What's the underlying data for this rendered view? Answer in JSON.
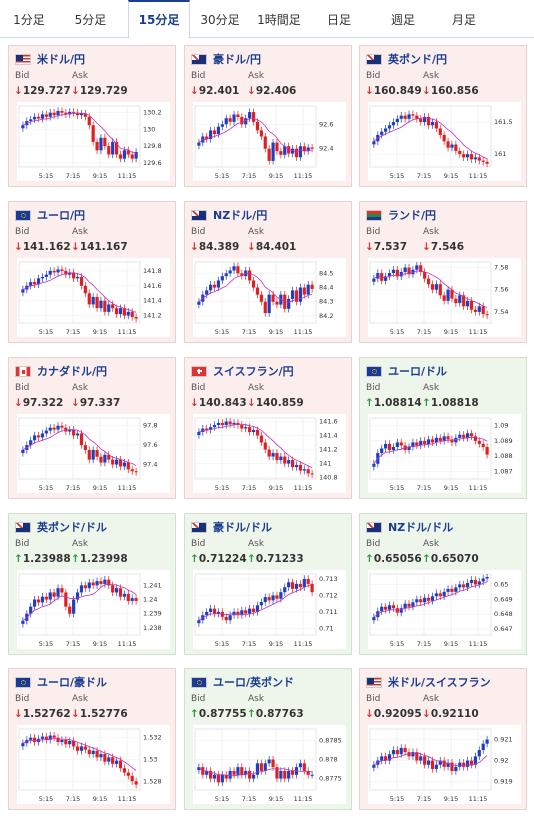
{
  "tabs": [
    {
      "label": "1分足",
      "active": false
    },
    {
      "label": "5分足",
      "active": false
    },
    {
      "label": "15分足",
      "active": true
    },
    {
      "label": "30分足",
      "active": false
    },
    {
      "label": "1時間足",
      "active": false
    },
    {
      "label": "日足",
      "active": false
    },
    {
      "label": "週足",
      "active": false
    },
    {
      "label": "月足",
      "active": false
    }
  ],
  "bid_label": "Bid",
  "ask_label": "Ask",
  "colors": {
    "up_candle": "#1f3fbf",
    "down_candle": "#e02020",
    "moving_average": "#c030c0",
    "down_bg": "#fdeeee",
    "up_bg": "#eef5ea"
  },
  "cards": [
    {
      "pair": "米ドル/円",
      "flag": "us-flag",
      "trend": "down",
      "arrow": "↓",
      "bid": "129.727",
      "ask": "129.729",
      "chart_data": {
        "type": "candlestick",
        "x_ticks": [
          "5:15",
          "7:15",
          "9:15",
          "11:15"
        ],
        "y_ticks": [
          "130.2",
          "130",
          "129.8",
          "129.6"
        ],
        "ylim": [
          129.55,
          130.28
        ],
        "closes": [
          130.05,
          130.1,
          130.12,
          130.15,
          130.13,
          130.18,
          130.15,
          130.2,
          130.17,
          130.22,
          130.2,
          130.18,
          130.21,
          130.2,
          130.17,
          130.19,
          130.15,
          130.05,
          129.85,
          129.75,
          129.9,
          129.8,
          129.7,
          129.85,
          129.7,
          129.65,
          129.75,
          129.7,
          129.65,
          129.73
        ]
      }
    },
    {
      "pair": "豪ドル/円",
      "flag": "au-flag",
      "trend": "down",
      "arrow": "↓",
      "bid": "92.401",
      "ask": "92.406",
      "chart_data": {
        "type": "candlestick",
        "x_ticks": [
          "5:15",
          "7:15",
          "9:15",
          "11:15"
        ],
        "y_ticks": [
          "92.6",
          "92.4"
        ],
        "ylim": [
          92.25,
          92.75
        ],
        "closes": [
          92.45,
          92.5,
          92.48,
          92.55,
          92.52,
          92.58,
          92.6,
          92.65,
          92.62,
          92.68,
          92.66,
          92.6,
          92.65,
          92.7,
          92.62,
          92.55,
          92.5,
          92.4,
          92.3,
          92.45,
          92.38,
          92.35,
          92.42,
          92.36,
          92.4,
          92.33,
          92.42,
          92.38,
          92.41,
          92.4
        ]
      }
    },
    {
      "pair": "英ポンド/円",
      "flag": "gb-flag",
      "trend": "down",
      "arrow": "↓",
      "bid": "160.849",
      "ask": "160.856",
      "chart_data": {
        "type": "candlestick",
        "x_ticks": [
          "5:15",
          "7:15",
          "9:15",
          "11:15"
        ],
        "y_ticks": [
          "161.5",
          "161"
        ],
        "ylim": [
          160.8,
          161.75
        ],
        "closes": [
          161.2,
          161.3,
          161.35,
          161.4,
          161.45,
          161.5,
          161.55,
          161.6,
          161.55,
          161.62,
          161.6,
          161.55,
          161.5,
          161.58,
          161.45,
          161.5,
          161.4,
          161.3,
          161.2,
          161.1,
          161.15,
          161.05,
          161,
          160.95,
          161,
          160.92,
          160.95,
          160.9,
          160.88,
          160.85
        ]
      }
    },
    {
      "pair": "ユーロ/円",
      "flag": "eu-flag",
      "trend": "down",
      "arrow": "↓",
      "bid": "141.162",
      "ask": "141.167",
      "chart_data": {
        "type": "candlestick",
        "x_ticks": [
          "5:15",
          "7:15",
          "9:15",
          "11:15"
        ],
        "y_ticks": [
          "141.8",
          "141.6",
          "141.4",
          "141.2"
        ],
        "ylim": [
          141.1,
          141.92
        ],
        "closes": [
          141.55,
          141.6,
          141.65,
          141.62,
          141.7,
          141.72,
          141.75,
          141.8,
          141.78,
          141.82,
          141.8,
          141.75,
          141.78,
          141.7,
          141.72,
          141.6,
          141.5,
          141.35,
          141.45,
          141.3,
          141.4,
          141.25,
          141.35,
          141.3,
          141.22,
          141.3,
          141.2,
          141.25,
          141.18,
          141.16
        ]
      }
    },
    {
      "pair": "NZドル/円",
      "flag": "nz-flag",
      "trend": "down",
      "arrow": "↓",
      "bid": "84.389",
      "ask": "84.401",
      "chart_data": {
        "type": "candlestick",
        "x_ticks": [
          "5:15",
          "7:15",
          "9:15",
          "11:15"
        ],
        "y_ticks": [
          "84.5",
          "84.4",
          "84.3",
          "84.2"
        ],
        "ylim": [
          84.15,
          84.58
        ],
        "closes": [
          84.3,
          84.35,
          84.38,
          84.42,
          84.4,
          84.45,
          84.48,
          84.5,
          84.52,
          84.55,
          84.5,
          84.48,
          84.52,
          84.45,
          84.4,
          84.35,
          84.3,
          84.22,
          84.35,
          84.3,
          84.28,
          84.35,
          84.25,
          84.32,
          84.38,
          84.3,
          84.4,
          84.35,
          84.42,
          84.39
        ]
      }
    },
    {
      "pair": "ランド/円",
      "flag": "za-flag",
      "trend": "down",
      "arrow": "↓",
      "bid": "7.537",
      "ask": "7.546",
      "chart_data": {
        "type": "candlestick",
        "x_ticks": [
          "5:15",
          "7:15",
          "9:15",
          "11:15"
        ],
        "y_ticks": [
          "7.58",
          "7.56",
          "7.54"
        ],
        "ylim": [
          7.53,
          7.585
        ],
        "closes": [
          7.57,
          7.575,
          7.568,
          7.572,
          7.575,
          7.578,
          7.572,
          7.576,
          7.58,
          7.574,
          7.578,
          7.582,
          7.576,
          7.57,
          7.565,
          7.56,
          7.565,
          7.555,
          7.55,
          7.56,
          7.552,
          7.548,
          7.555,
          7.545,
          7.55,
          7.542,
          7.54,
          7.545,
          7.538,
          7.537
        ]
      }
    },
    {
      "pair": "カナダドル/円",
      "flag": "ca-flag",
      "trend": "down",
      "arrow": "↓",
      "bid": "97.322",
      "ask": "97.337",
      "chart_data": {
        "type": "candlestick",
        "x_ticks": [
          "5:15",
          "7:15",
          "9:15",
          "11:15"
        ],
        "y_ticks": [
          "97.8",
          "97.6",
          "97.4"
        ],
        "ylim": [
          97.25,
          97.88
        ],
        "closes": [
          97.55,
          97.6,
          97.65,
          97.7,
          97.68,
          97.72,
          97.75,
          97.78,
          97.76,
          97.8,
          97.78,
          97.74,
          97.76,
          97.7,
          97.72,
          97.6,
          97.55,
          97.45,
          97.55,
          97.48,
          97.42,
          97.5,
          97.45,
          97.4,
          97.45,
          97.38,
          97.42,
          97.35,
          97.33,
          97.32
        ]
      }
    },
    {
      "pair": "スイスフラン/円",
      "flag": "ch-flag",
      "trend": "down",
      "arrow": "↓",
      "bid": "140.843",
      "ask": "140.859",
      "chart_data": {
        "type": "candlestick",
        "x_ticks": [
          "5:15",
          "7:15",
          "9:15",
          "11:15"
        ],
        "y_ticks": [
          "141.6",
          "141.4",
          "141.2",
          "141",
          "140.8"
        ],
        "ylim": [
          140.78,
          141.65
        ],
        "closes": [
          141.45,
          141.5,
          141.48,
          141.52,
          141.55,
          141.58,
          141.55,
          141.6,
          141.56,
          141.58,
          141.55,
          141.5,
          141.52,
          141.45,
          141.48,
          141.4,
          141.3,
          141.2,
          141.1,
          141.15,
          141.05,
          141.1,
          141,
          141.05,
          140.95,
          140.98,
          140.9,
          140.92,
          140.86,
          140.85
        ]
      }
    },
    {
      "pair": "ユーロ/ドル",
      "flag": "eu-us-flag",
      "trend": "up",
      "arrow": "↑",
      "bid": "1.08814",
      "ask": "1.08818",
      "chart_data": {
        "type": "candlestick",
        "x_ticks": [
          "5:15",
          "7:15",
          "9:15",
          "11:15"
        ],
        "y_ticks": [
          "1.09",
          "1.089",
          "1.088",
          "1.087"
        ],
        "ylim": [
          1.0865,
          1.0905
        ],
        "closes": [
          1.0875,
          1.0882,
          1.0885,
          1.0888,
          1.0884,
          1.0886,
          1.0889,
          1.0887,
          1.0884,
          1.0886,
          1.0889,
          1.0887,
          1.089,
          1.0888,
          1.0891,
          1.0889,
          1.0892,
          1.089,
          1.0893,
          1.0891,
          1.0889,
          1.0892,
          1.0894,
          1.0892,
          1.0895,
          1.0893,
          1.089,
          1.0888,
          1.0886,
          1.0881
        ]
      }
    },
    {
      "pair": "英ポンド/ドル",
      "flag": "gb-us-flag",
      "trend": "up",
      "arrow": "↑",
      "bid": "1.23988",
      "ask": "1.23998",
      "chart_data": {
        "type": "candlestick",
        "x_ticks": [
          "5:15",
          "7:15",
          "9:15",
          "11:15"
        ],
        "y_ticks": [
          "1.241",
          "1.24",
          "1.239",
          "1.238"
        ],
        "ylim": [
          1.2375,
          1.2418
        ],
        "closes": [
          1.2385,
          1.239,
          1.2395,
          1.24,
          1.2398,
          1.2402,
          1.24,
          1.2405,
          1.2402,
          1.2408,
          1.2405,
          1.2395,
          1.239,
          1.24,
          1.2405,
          1.241,
          1.2408,
          1.2412,
          1.241,
          1.2413,
          1.2411,
          1.2414,
          1.241,
          1.2405,
          1.2408,
          1.2402,
          1.2404,
          1.2399,
          1.2401,
          1.2399
        ]
      }
    },
    {
      "pair": "豪ドル/ドル",
      "flag": "au-us-flag",
      "trend": "up",
      "arrow": "↑",
      "bid": "0.71224",
      "ask": "0.71233",
      "chart_data": {
        "type": "candlestick",
        "x_ticks": [
          "5:15",
          "7:15",
          "9:15",
          "11:15"
        ],
        "y_ticks": [
          "0.713",
          "0.712",
          "0.711",
          "0.71"
        ],
        "ylim": [
          0.7096,
          0.7133
        ],
        "closes": [
          0.7105,
          0.7108,
          0.711,
          0.7112,
          0.7109,
          0.711,
          0.7107,
          0.7105,
          0.7108,
          0.711,
          0.7108,
          0.7111,
          0.7109,
          0.7112,
          0.711,
          0.7114,
          0.7116,
          0.7119,
          0.7117,
          0.712,
          0.7118,
          0.7122,
          0.7125,
          0.7128,
          0.7124,
          0.7127,
          0.7125,
          0.713,
          0.7127,
          0.7122
        ]
      }
    },
    {
      "pair": "NZドル/ドル",
      "flag": "nz-us-flag",
      "trend": "up",
      "arrow": "↑",
      "bid": "0.65056",
      "ask": "0.65070",
      "chart_data": {
        "type": "candlestick",
        "x_ticks": [
          "5:15",
          "7:15",
          "9:15",
          "11:15"
        ],
        "y_ticks": [
          "0.65",
          "0.649",
          "0.648",
          "0.647"
        ],
        "ylim": [
          0.6466,
          0.6507
        ],
        "closes": [
          0.6478,
          0.6482,
          0.6485,
          0.6483,
          0.6486,
          0.6484,
          0.6481,
          0.6484,
          0.6487,
          0.6485,
          0.6488,
          0.649,
          0.6488,
          0.6491,
          0.6489,
          0.6492,
          0.6494,
          0.6492,
          0.6495,
          0.6497,
          0.6495,
          0.6498,
          0.65,
          0.6498,
          0.6501,
          0.6503,
          0.65,
          0.6502,
          0.6504,
          0.6505
        ]
      }
    },
    {
      "pair": "ユーロ/豪ドル",
      "flag": "eu-au-flag",
      "trend": "down",
      "arrow": "↓",
      "bid": "1.52762",
      "ask": "1.52776",
      "chart_data": {
        "type": "candlestick",
        "x_ticks": [
          "5:15",
          "7:15",
          "9:15",
          "11:15"
        ],
        "y_ticks": [
          "1.532",
          "1.53",
          "1.528"
        ],
        "ylim": [
          1.5272,
          1.5328
        ],
        "closes": [
          1.5315,
          1.5318,
          1.532,
          1.5316,
          1.5319,
          1.5321,
          1.5318,
          1.5322,
          1.532,
          1.5316,
          1.5318,
          1.5314,
          1.5317,
          1.5312,
          1.5308,
          1.5312,
          1.5309,
          1.5305,
          1.5308,
          1.5302,
          1.5305,
          1.5298,
          1.5302,
          1.5296,
          1.5299,
          1.5292,
          1.5288,
          1.5285,
          1.528,
          1.5277
        ]
      }
    },
    {
      "pair": "ユーロ/英ポンド",
      "flag": "eu-gb-flag",
      "trend": "up",
      "arrow": "↑",
      "bid": "0.87755",
      "ask": "0.87763",
      "chart_data": {
        "type": "candlestick",
        "x_ticks": [
          "5:15",
          "7:15",
          "9:15",
          "11:15"
        ],
        "y_ticks": [
          "0.8785",
          "0.878",
          "0.8775"
        ],
        "ylim": [
          0.8772,
          0.8788
        ],
        "closes": [
          0.8778,
          0.8776,
          0.8777,
          0.8775,
          0.8776,
          0.8774,
          0.8776,
          0.8775,
          0.8777,
          0.8776,
          0.8778,
          0.8776,
          0.8777,
          0.8775,
          0.8776,
          0.8779,
          0.8777,
          0.8779,
          0.878,
          0.8778,
          0.8775,
          0.8777,
          0.8775,
          0.8777,
          0.8776,
          0.8778,
          0.8779,
          0.8777,
          0.8776,
          0.8776
        ]
      }
    },
    {
      "pair": "米ドル/スイスフラン",
      "flag": "us-ch-flag",
      "trend": "down",
      "arrow": "↓",
      "bid": "0.92095",
      "ask": "0.92110",
      "chart_data": {
        "type": "candlestick",
        "x_ticks": [
          "5:15",
          "7:15",
          "9:15",
          "11:15"
        ],
        "y_ticks": [
          "0.921",
          "0.92",
          "0.919"
        ],
        "ylim": [
          0.9186,
          0.9215
        ],
        "closes": [
          0.9198,
          0.92,
          0.9202,
          0.92,
          0.9203,
          0.9205,
          0.9203,
          0.9206,
          0.9204,
          0.9202,
          0.9204,
          0.92,
          0.9202,
          0.9198,
          0.92,
          0.9196,
          0.9198,
          0.92,
          0.9197,
          0.9199,
          0.9195,
          0.9197,
          0.9199,
          0.9197,
          0.92,
          0.9198,
          0.9202,
          0.9205,
          0.9208,
          0.921
        ]
      }
    }
  ]
}
